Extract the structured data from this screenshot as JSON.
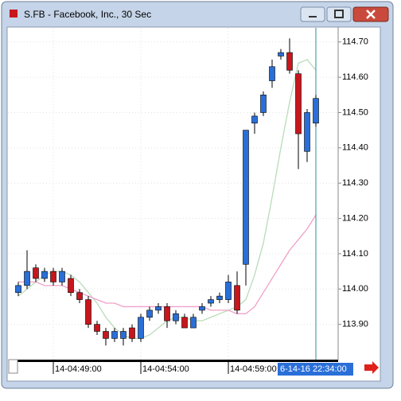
{
  "window_title": "S.FB - Facebook, Inc., 30 Sec",
  "chart_data": {
    "type": "candlestick",
    "categories": [
      null,
      null,
      null,
      null,
      "14-04:49:00",
      null,
      null,
      null,
      null,
      null,
      null,
      null,
      null,
      null,
      "14-04:54:00",
      null,
      null,
      null,
      null,
      null,
      null,
      null,
      null,
      null,
      "14-04:59:00",
      null,
      null,
      null,
      null,
      null,
      null,
      null,
      null,
      null,
      null
    ],
    "open": [
      113.99,
      114.01,
      114.06,
      114.03,
      114.05,
      114.02,
      114.03,
      113.99,
      113.97,
      113.9,
      113.88,
      113.86,
      113.86,
      113.89,
      113.86,
      113.92,
      113.94,
      113.95,
      113.91,
      113.92,
      113.89,
      113.94,
      113.96,
      113.97,
      113.97,
      114.01,
      114.07,
      114.47,
      114.5,
      114.59,
      114.66,
      114.67,
      114.61,
      114.39,
      114.47
    ],
    "high": [
      114.02,
      114.11,
      114.07,
      114.06,
      114.06,
      114.06,
      114.04,
      114.0,
      113.98,
      113.91,
      113.89,
      113.89,
      113.89,
      113.9,
      113.93,
      113.95,
      113.96,
      113.96,
      113.94,
      113.93,
      113.93,
      113.96,
      113.98,
      113.99,
      114.04,
      114.05,
      114.45,
      114.5,
      114.56,
      114.65,
      114.68,
      114.71,
      114.62,
      114.51,
      114.55
    ],
    "low": [
      113.98,
      114.0,
      114.02,
      114.02,
      114.01,
      114.01,
      113.98,
      113.96,
      113.89,
      113.87,
      113.84,
      113.85,
      113.84,
      113.85,
      113.85,
      113.91,
      113.93,
      113.89,
      113.9,
      113.89,
      113.89,
      113.93,
      113.95,
      113.96,
      113.96,
      113.93,
      114.01,
      114.44,
      114.49,
      114.57,
      114.65,
      114.61,
      114.34,
      114.36,
      114.46
    ],
    "close": [
      114.01,
      114.05,
      114.03,
      114.05,
      114.02,
      114.05,
      113.99,
      113.97,
      113.9,
      113.88,
      113.86,
      113.88,
      113.88,
      113.86,
      113.92,
      113.94,
      113.95,
      113.91,
      113.93,
      113.89,
      113.92,
      113.95,
      113.97,
      113.98,
      114.02,
      113.94,
      114.45,
      114.49,
      114.55,
      114.63,
      114.67,
      114.62,
      114.44,
      114.5,
      114.54
    ],
    "up_color": "#2a6fd8",
    "down_color": "#c8161d",
    "lines": [
      {
        "color": "#b9dcb9",
        "values": [
          113.98,
          114.0,
          114.02,
          114.04,
          114.05,
          114.05,
          114.04,
          114.02,
          113.99,
          113.96,
          113.92,
          113.89,
          113.87,
          113.86,
          113.86,
          113.87,
          113.89,
          113.91,
          113.92,
          113.92,
          113.91,
          113.91,
          113.92,
          113.93,
          113.94,
          113.95,
          113.97,
          114.04,
          114.13,
          114.26,
          114.4,
          114.53,
          114.64,
          114.65,
          114.62
        ]
      },
      {
        "color": "#f0a0c8",
        "values": [
          114.02,
          114.02,
          114.02,
          114.01,
          114.01,
          114.01,
          114.0,
          113.99,
          113.98,
          113.97,
          113.96,
          113.96,
          113.95,
          113.95,
          113.95,
          113.95,
          113.95,
          113.95,
          113.95,
          113.95,
          113.95,
          113.95,
          113.94,
          113.94,
          113.94,
          113.93,
          113.93,
          113.95,
          113.99,
          114.03,
          114.07,
          114.11,
          114.14,
          114.17,
          114.21
        ]
      }
    ],
    "ylim": [
      113.8,
      114.74
    ],
    "yticks": [
      {
        "value": 113.9,
        "label": "113.90"
      },
      {
        "value": 114.0,
        "label": "114.00"
      },
      {
        "value": 114.1,
        "label": "114.10"
      },
      {
        "value": 114.2,
        "label": "114.20"
      },
      {
        "value": 114.3,
        "label": "114.30"
      },
      {
        "value": 114.4,
        "label": "114.40"
      },
      {
        "value": 114.5,
        "label": "114.50"
      },
      {
        "value": 114.6,
        "label": "114.60"
      },
      {
        "value": 114.7,
        "label": "114.70"
      }
    ],
    "grid": true,
    "crosshair_index": 34,
    "crosshair_label": "6-14-16 22:34:00"
  }
}
